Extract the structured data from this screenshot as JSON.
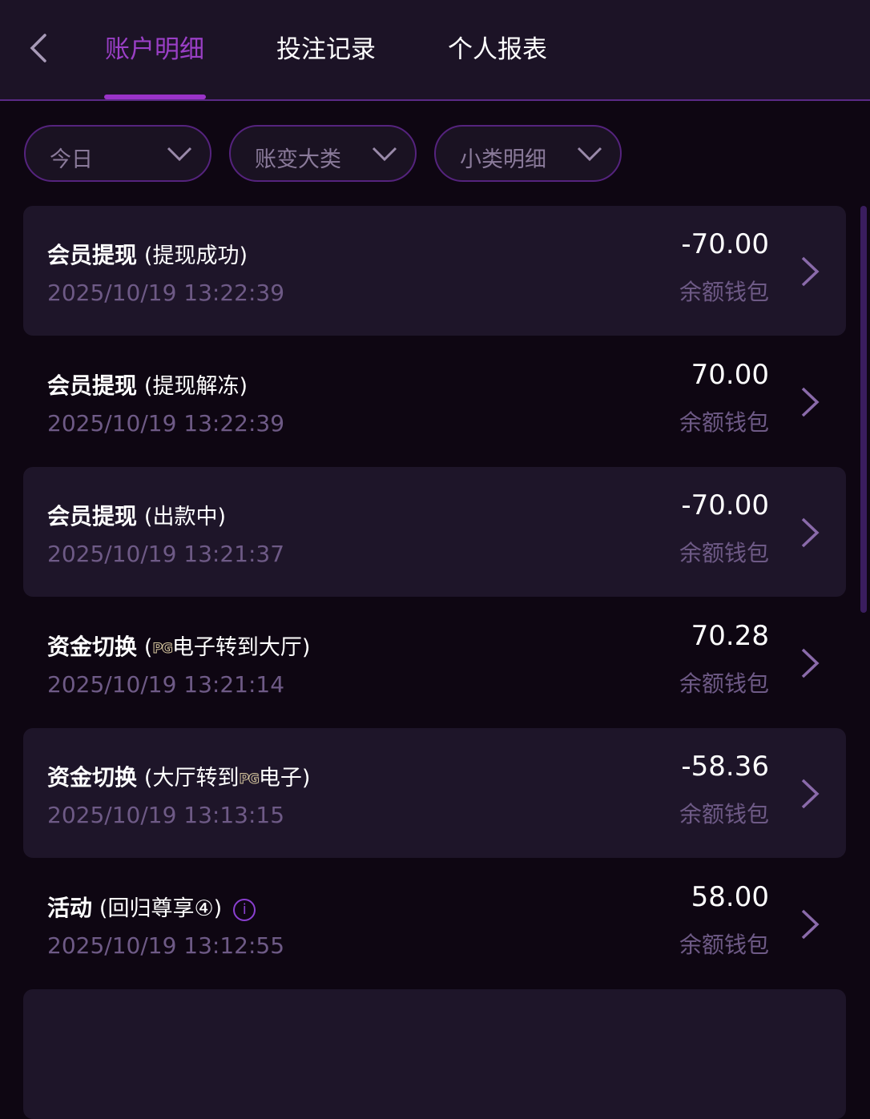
{
  "header": {
    "tabs": [
      {
        "label": "账户明细",
        "active": true
      },
      {
        "label": "投注记录"
      },
      {
        "label": "个人报表"
      }
    ]
  },
  "filters": [
    {
      "label": "今日"
    },
    {
      "label": "账变大类"
    },
    {
      "label": "小类明细"
    }
  ],
  "colors": {
    "accent": "#9a33c8",
    "background": "#0e0612",
    "card": "#1e1529"
  },
  "rows": [
    {
      "type": "会员提现",
      "detail_pre": "(提现成功)",
      "logo": "",
      "detail_post": "",
      "date": "2025/10/19 13:22:39",
      "amount": "-70.00",
      "wallet": "余额钱包"
    },
    {
      "type": "会员提现",
      "detail_pre": "(提现解冻)",
      "logo": "",
      "detail_post": "",
      "date": "2025/10/19 13:22:39",
      "amount": "70.00",
      "wallet": "余额钱包"
    },
    {
      "type": "会员提现",
      "detail_pre": "(出款中)",
      "logo": "",
      "detail_post": "",
      "date": "2025/10/19 13:21:37",
      "amount": "-70.00",
      "wallet": "余额钱包"
    },
    {
      "type": "资金切换",
      "detail_pre": "(",
      "logo": "PG",
      "detail_post": "电子转到大厅)",
      "date": "2025/10/19 13:21:14",
      "amount": "70.28",
      "wallet": "余额钱包"
    },
    {
      "type": "资金切换",
      "detail_pre": "(大厅转到",
      "logo": "PG",
      "detail_post": "电子)",
      "date": "2025/10/19 13:13:15",
      "amount": "-58.36",
      "wallet": "余额钱包"
    },
    {
      "type": "活动",
      "detail_pre": "(回归尊享④)",
      "logo": "",
      "detail_post": "",
      "date": "2025/10/19 13:12:55",
      "amount": "58.00",
      "wallet": "余额钱包",
      "info_icon": "i"
    }
  ]
}
